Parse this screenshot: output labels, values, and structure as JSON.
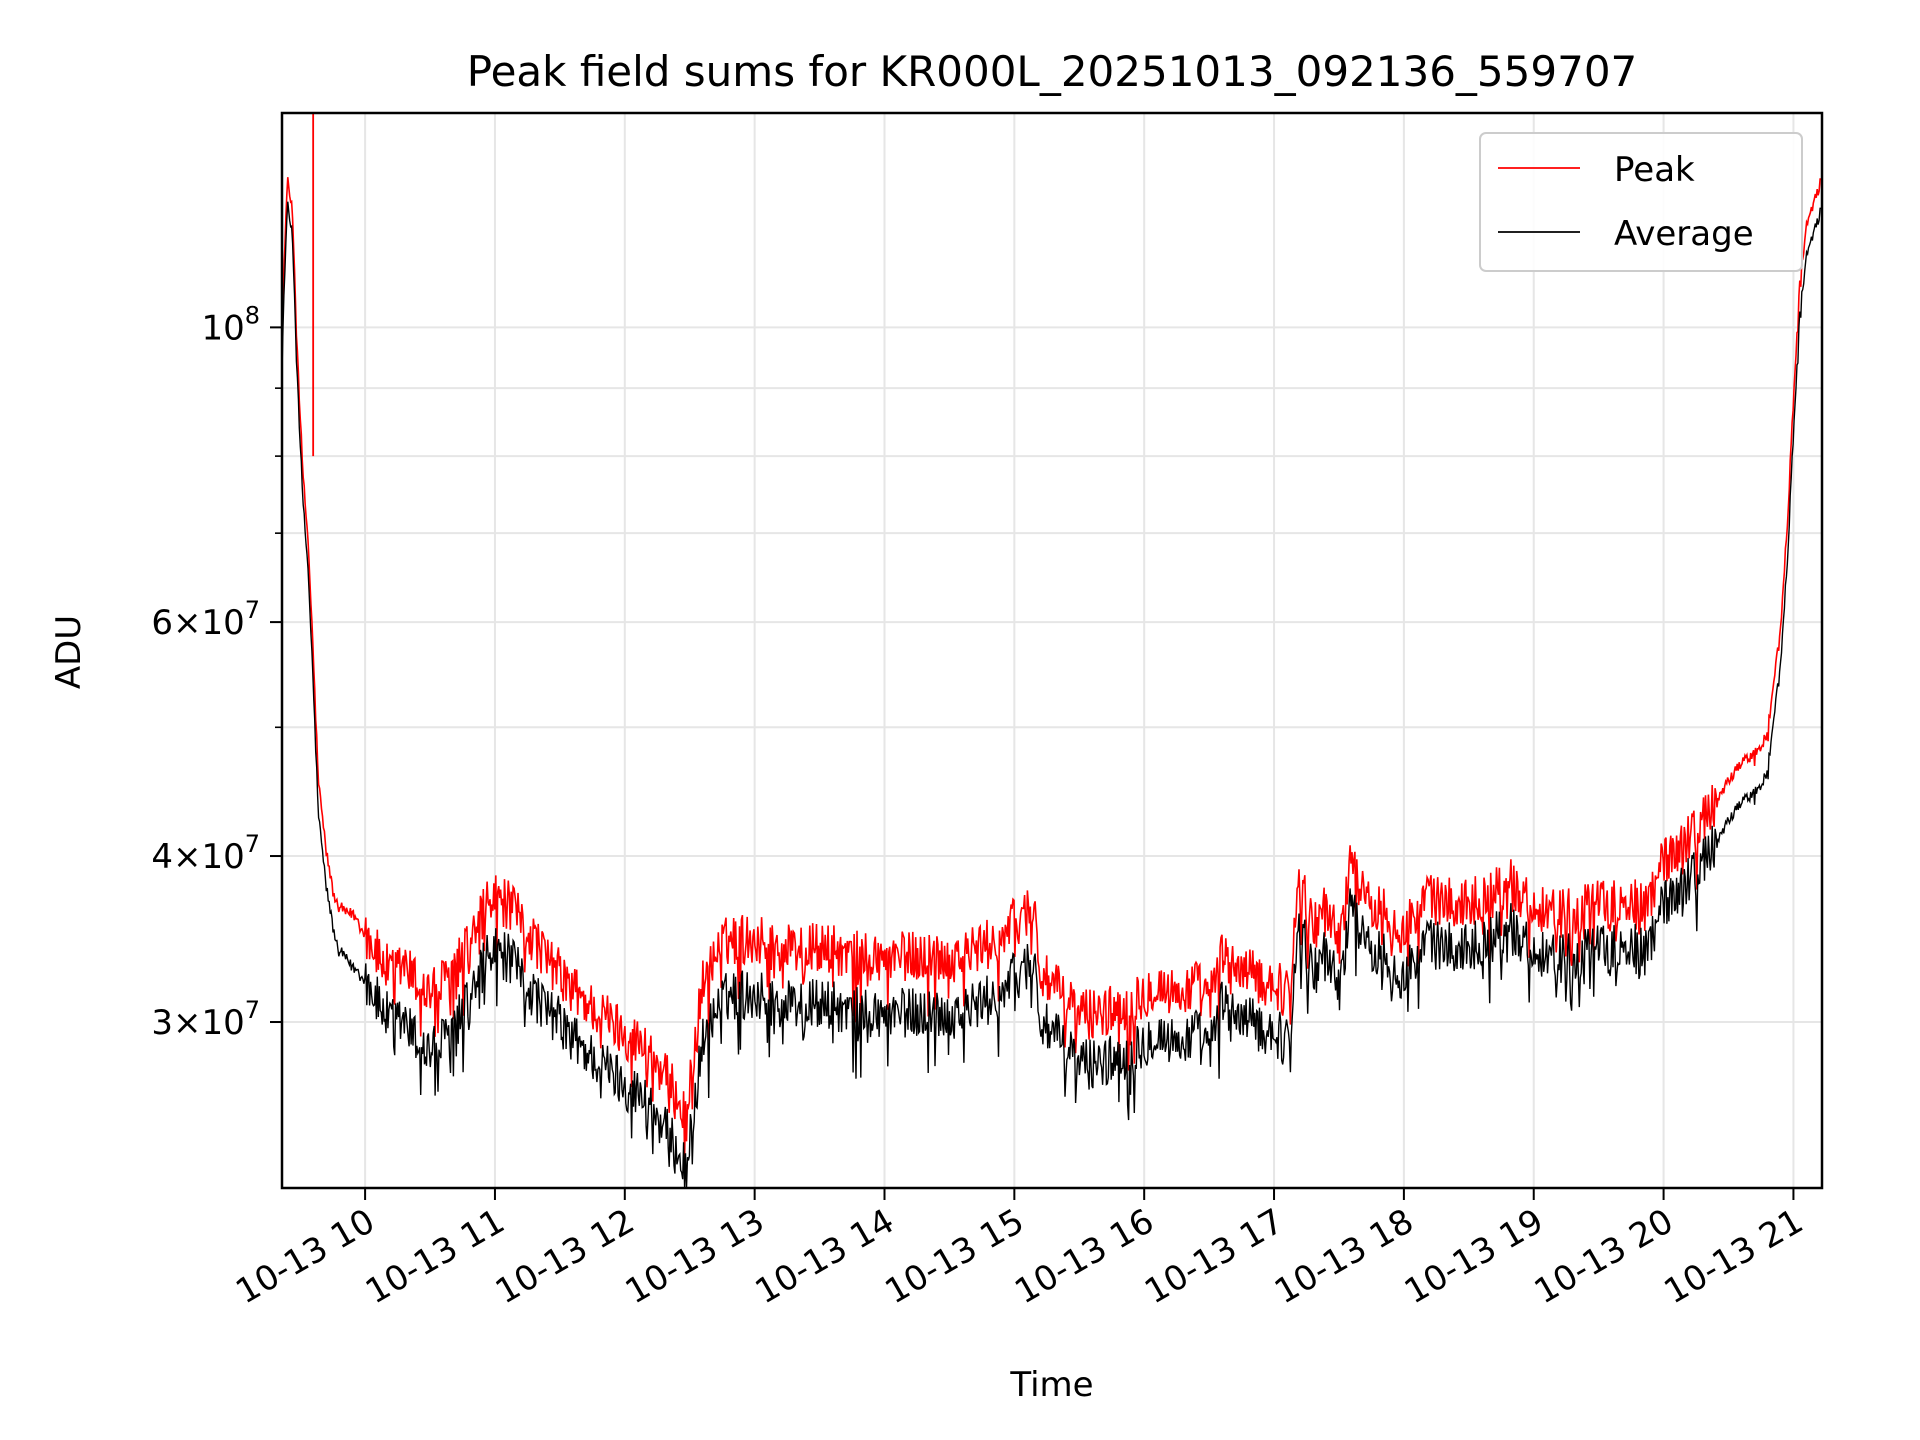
{
  "chart_data": {
    "type": "line",
    "title": "Peak field sums for KR000L_20251013_092136_559707",
    "xlabel": "Time",
    "ylabel": "ADU",
    "yscale": "log",
    "ylim": [
      22500000,
      145000000
    ],
    "xlim_hours": [
      9.36,
      21.22
    ],
    "grid": true,
    "legend_position": "upper right",
    "x_ticks": [
      {
        "hour": 10,
        "label": "10-13 10"
      },
      {
        "hour": 11,
        "label": "10-13 11"
      },
      {
        "hour": 12,
        "label": "10-13 12"
      },
      {
        "hour": 13,
        "label": "10-13 13"
      },
      {
        "hour": 14,
        "label": "10-13 14"
      },
      {
        "hour": 15,
        "label": "10-13 15"
      },
      {
        "hour": 16,
        "label": "10-13 16"
      },
      {
        "hour": 17,
        "label": "10-13 17"
      },
      {
        "hour": 18,
        "label": "10-13 18"
      },
      {
        "hour": 19,
        "label": "10-13 19"
      },
      {
        "hour": 20,
        "label": "10-13 20"
      },
      {
        "hour": 21,
        "label": "10-13 21"
      }
    ],
    "y_ticks": [
      {
        "value": 30000000,
        "mantissa": "3",
        "exponent": "7"
      },
      {
        "value": 40000000,
        "mantissa": "4",
        "exponent": "7"
      },
      {
        "value": 60000000,
        "mantissa": "6",
        "exponent": "7"
      },
      {
        "value": 100000000,
        "mantissa": "",
        "exponent": "8"
      }
    ],
    "y_minor_ticks": [
      50000000,
      70000000,
      80000000,
      90000000
    ],
    "series": [
      {
        "name": "Peak",
        "color": "#ff0000",
        "spike": {
          "hour": 9.6,
          "from": 80000000,
          "to": 145000000
        },
        "offset_factor": 1.035,
        "x_hours": [
          9.36,
          9.4,
          9.44,
          9.48,
          9.52,
          9.56,
          9.6,
          9.64,
          9.7,
          9.76,
          9.8,
          9.85,
          9.9,
          10.0,
          10.1,
          10.2,
          10.3,
          10.4,
          10.5,
          10.6,
          10.65,
          10.8,
          10.9,
          11.0,
          11.1,
          11.2,
          11.3,
          11.5,
          11.7,
          11.9,
          12.0,
          12.2,
          12.3,
          12.4,
          12.45,
          12.5,
          12.6,
          12.7,
          12.8,
          13.0,
          13.2,
          13.5,
          13.8,
          14.0,
          14.3,
          14.6,
          14.9,
          15.0,
          15.15,
          15.2,
          15.35,
          15.5,
          15.7,
          15.9,
          16.0,
          16.1,
          16.2,
          16.3,
          16.4,
          16.5,
          16.6,
          16.8,
          17.0,
          17.1,
          17.2,
          17.3,
          17.4,
          17.5,
          17.6,
          17.7,
          17.8,
          18.0,
          18.2,
          18.4,
          18.6,
          18.8,
          19.0,
          19.2,
          19.4,
          19.6,
          19.9,
          20.0,
          20.2,
          20.4,
          20.5,
          20.6,
          20.75,
          20.8,
          20.9,
          20.95,
          21.0,
          21.05,
          21.1,
          21.22
        ],
        "values": [
          96000000,
          125000000,
          118000000,
          92000000,
          75000000,
          67000000,
          55000000,
          44000000,
          39000000,
          36000000,
          35500000,
          35000000,
          35000000,
          34000000,
          32500000,
          31500000,
          32000000,
          31000000,
          30500000,
          31000000,
          31500000,
          33000000,
          35000000,
          36000000,
          35500000,
          34500000,
          33500000,
          31500000,
          30000000,
          29000000,
          28500000,
          27500000,
          26500000,
          25500000,
          24800000,
          26000000,
          31000000,
          32500000,
          33500000,
          33500000,
          33000000,
          33000000,
          32500000,
          32500000,
          32500000,
          32500000,
          33500000,
          34500000,
          35500000,
          31500000,
          30500000,
          29500000,
          29500000,
          30000000,
          30500000,
          31000000,
          30500000,
          30500000,
          31000000,
          30000000,
          32500000,
          31500000,
          31000000,
          30500000,
          37000000,
          34000000,
          36000000,
          33000000,
          39000000,
          35500000,
          35500000,
          34000000,
          36000000,
          35500000,
          36000000,
          37000000,
          35500000,
          35000000,
          35500000,
          35500000,
          36000000,
          38500000,
          40000000,
          42500000,
          44000000,
          45500000,
          46500000,
          48000000,
          57000000,
          68000000,
          85000000,
          105000000,
          115000000,
          125000000
        ]
      },
      {
        "name": "Average",
        "color": "#000000",
        "x_hours": [
          9.36,
          9.4,
          9.44,
          9.48,
          9.52,
          9.56,
          9.6,
          9.64,
          9.7,
          9.76,
          9.8,
          9.85,
          9.9,
          10.0,
          10.1,
          10.2,
          10.3,
          10.4,
          10.5,
          10.6,
          10.65,
          10.8,
          10.9,
          11.0,
          11.1,
          11.2,
          11.3,
          11.5,
          11.7,
          11.9,
          12.0,
          12.2,
          12.3,
          12.4,
          12.45,
          12.5,
          12.6,
          12.7,
          12.8,
          13.0,
          13.2,
          13.5,
          13.8,
          14.0,
          14.3,
          14.6,
          14.9,
          15.0,
          15.15,
          15.2,
          15.35,
          15.5,
          15.7,
          15.9,
          16.0,
          16.1,
          16.2,
          16.3,
          16.4,
          16.5,
          16.6,
          16.8,
          17.0,
          17.1,
          17.2,
          17.3,
          17.4,
          17.5,
          17.6,
          17.7,
          17.8,
          18.0,
          18.2,
          18.4,
          18.6,
          18.8,
          19.0,
          19.2,
          19.4,
          19.6,
          19.9,
          20.0,
          20.2,
          20.4,
          20.5,
          20.6,
          20.75,
          20.8,
          20.9,
          20.95,
          21.0,
          21.05,
          21.1,
          21.22
        ],
        "values": [
          95000000,
          124000000,
          117000000,
          91000000,
          74000000,
          66000000,
          54000000,
          43000000,
          38000000,
          35000000,
          34000000,
          33500000,
          33000000,
          32500000,
          31000000,
          30000000,
          30000000,
          29000000,
          28500000,
          29000000,
          29500000,
          31000000,
          33000000,
          34000000,
          33500000,
          32500000,
          31500000,
          30000000,
          28500000,
          27500000,
          27000000,
          26000000,
          25000000,
          24000000,
          23500000,
          24500000,
          29000000,
          30500000,
          31500000,
          31500000,
          31000000,
          31000000,
          30500000,
          30500000,
          30500000,
          30500000,
          31500000,
          32500000,
          33500000,
          30000000,
          29000000,
          28000000,
          28000000,
          28500000,
          29000000,
          29500000,
          29000000,
          29000000,
          29500000,
          28500000,
          31000000,
          30000000,
          29500000,
          29000000,
          35500000,
          32500000,
          34500000,
          31500000,
          37500000,
          34000000,
          34000000,
          32500000,
          34500000,
          34000000,
          34500000,
          35500000,
          34000000,
          33500000,
          34000000,
          34000000,
          34500000,
          37000000,
          38500000,
          41000000,
          42500000,
          44000000,
          45000000,
          46500000,
          55500000,
          66000000,
          83000000,
          103000000,
          113000000,
          123000000
        ]
      }
    ]
  }
}
